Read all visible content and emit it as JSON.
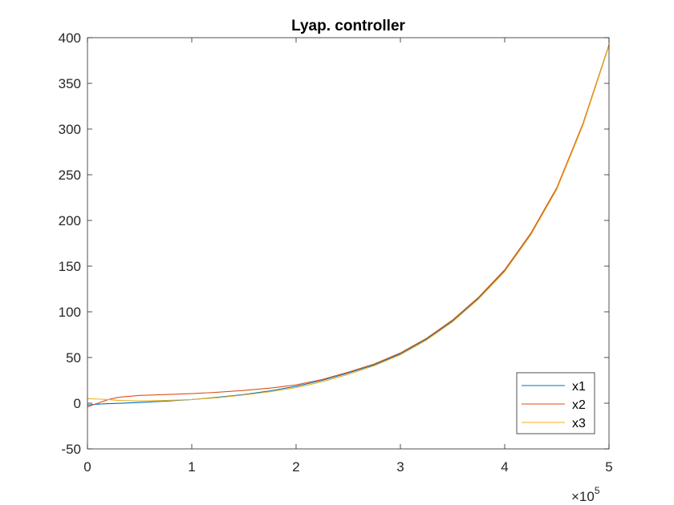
{
  "chart_data": {
    "type": "line",
    "title": "Lyap. controller",
    "xlabel": "",
    "ylabel": "",
    "xlim": [
      0,
      5
    ],
    "ylim": [
      -50,
      400
    ],
    "x_exponent_label": {
      "base": "×10",
      "power": "5"
    },
    "xticks": [
      0,
      1,
      2,
      3,
      4,
      5
    ],
    "yticks": [
      -50,
      0,
      50,
      100,
      150,
      200,
      250,
      300,
      350,
      400
    ],
    "grid": false,
    "legend_position": "bottom-right",
    "series": [
      {
        "name": "x1",
        "color": "#0072BD",
        "x": [
          0,
          0.05,
          0.1,
          0.2,
          0.3,
          0.5,
          0.75,
          1.0,
          1.25,
          1.5,
          1.75,
          2.0,
          2.25,
          2.5,
          2.75,
          3.0,
          3.25,
          3.5,
          3.75,
          4.0,
          4.25,
          4.5,
          4.75,
          5.0
        ],
        "y": [
          -2,
          -1.5,
          -1,
          -0.5,
          -0.2,
          0.8,
          2.2,
          4,
          6.5,
          9.5,
          13.5,
          18.5,
          25,
          33,
          42,
          54,
          70,
          90,
          115,
          145,
          185,
          235,
          305,
          392
        ]
      },
      {
        "name": "x2",
        "color": "#D95319",
        "x": [
          0,
          0.05,
          0.1,
          0.2,
          0.3,
          0.4,
          0.5,
          0.75,
          1.0,
          1.25,
          1.5,
          1.75,
          2.0,
          2.25,
          2.5,
          2.75,
          3.0,
          3.25,
          3.5,
          3.75,
          4.0,
          4.25,
          4.5,
          4.75,
          5.0
        ],
        "y": [
          -4,
          -2,
          0,
          4,
          6.5,
          7.5,
          8.5,
          9.5,
          10.5,
          12,
          14,
          16.5,
          20,
          26,
          34,
          43,
          55,
          71,
          91,
          116,
          146,
          186,
          236,
          306,
          392
        ]
      },
      {
        "name": "x3",
        "color": "#EDB120",
        "x": [
          0,
          0.1,
          0.2,
          0.3,
          0.5,
          0.75,
          1.0,
          1.25,
          1.5,
          1.75,
          2.0,
          2.25,
          2.5,
          2.75,
          3.0,
          3.25,
          3.5,
          3.75,
          4.0,
          4.25,
          4.5,
          4.75,
          5.0
        ],
        "y": [
          5,
          4.5,
          4,
          3,
          2.5,
          3,
          4,
          6,
          9,
          12.5,
          17,
          23.5,
          31.5,
          41,
          53,
          69,
          89,
          114,
          144,
          184,
          234,
          304,
          391
        ]
      }
    ]
  }
}
